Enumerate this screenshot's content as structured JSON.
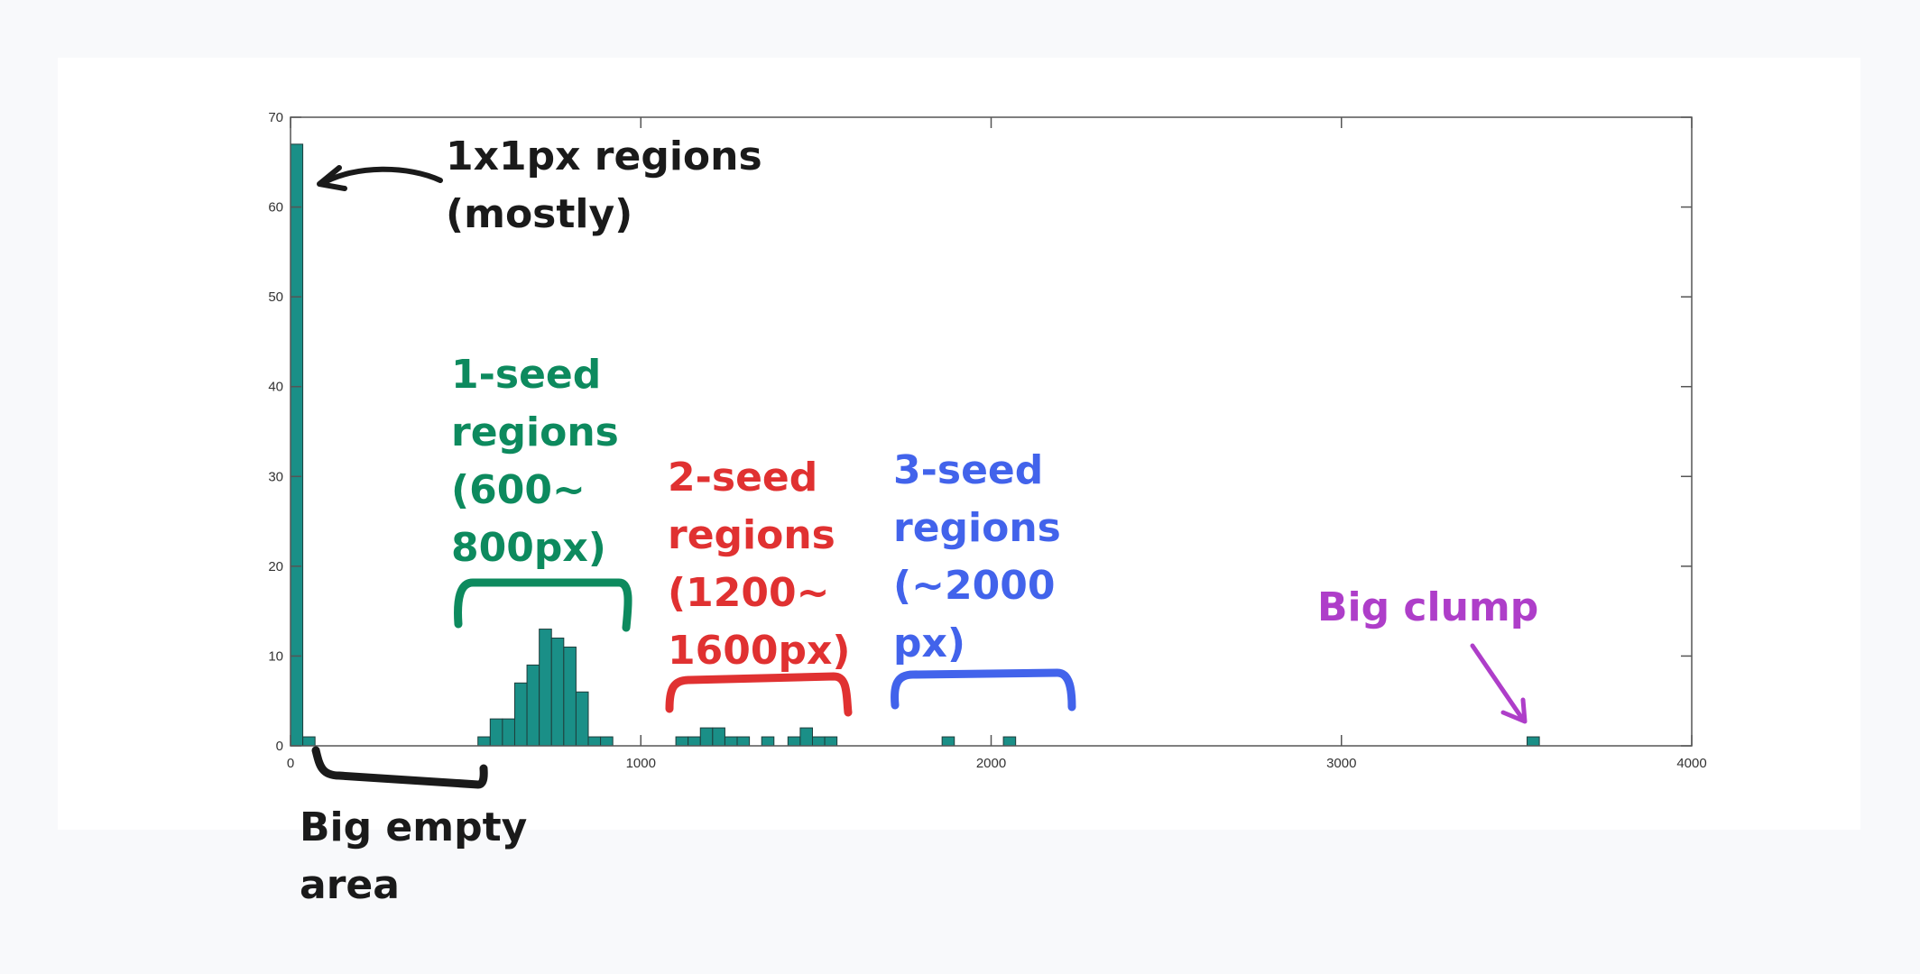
{
  "chart_data": {
    "type": "bar",
    "title": "",
    "xlabel": "",
    "ylabel": "",
    "xlim": [
      0,
      4000
    ],
    "ylim": [
      0,
      70
    ],
    "bin_width": 35,
    "x_ticks": [
      0,
      1000,
      2000,
      3000,
      4000
    ],
    "y_ticks": [
      0,
      10,
      20,
      30,
      40,
      50,
      60,
      70
    ],
    "grid": false,
    "legend": "none",
    "bar_color": "#1a8f87",
    "bar_edge_color": "#1f3d3b",
    "bins": [
      {
        "x": 0,
        "value": 67
      },
      {
        "x": 35,
        "value": 1
      },
      {
        "x": 535,
        "value": 1
      },
      {
        "x": 570,
        "value": 3
      },
      {
        "x": 605,
        "value": 3
      },
      {
        "x": 640,
        "value": 7
      },
      {
        "x": 675,
        "value": 9
      },
      {
        "x": 710,
        "value": 13
      },
      {
        "x": 745,
        "value": 12
      },
      {
        "x": 780,
        "value": 11
      },
      {
        "x": 815,
        "value": 6
      },
      {
        "x": 850,
        "value": 1
      },
      {
        "x": 885,
        "value": 1
      },
      {
        "x": 1100,
        "value": 1
      },
      {
        "x": 1135,
        "value": 1
      },
      {
        "x": 1170,
        "value": 2
      },
      {
        "x": 1205,
        "value": 2
      },
      {
        "x": 1240,
        "value": 1
      },
      {
        "x": 1275,
        "value": 1
      },
      {
        "x": 1345,
        "value": 1
      },
      {
        "x": 1420,
        "value": 1
      },
      {
        "x": 1455,
        "value": 2
      },
      {
        "x": 1490,
        "value": 1
      },
      {
        "x": 1525,
        "value": 1
      },
      {
        "x": 1860,
        "value": 1
      },
      {
        "x": 2035,
        "value": 1
      },
      {
        "x": 3530,
        "value": 1
      }
    ]
  },
  "annotations": [
    {
      "text": "1x1px regions\n(mostly)",
      "color": "#1a1a1a"
    },
    {
      "text": "1-seed\nregions\n(600~\n800px)",
      "color": "#0d8a5e"
    },
    {
      "text": "2-seed\nregions\n(1200~\n1600px)",
      "color": "#e03131"
    },
    {
      "text": "3-seed\nregions\n(~2000\npx)",
      "color": "#4263eb"
    },
    {
      "text": "Big clump",
      "color": "#ae3ec9"
    },
    {
      "text": "Big empty\narea",
      "color": "#1a1a1a"
    }
  ]
}
